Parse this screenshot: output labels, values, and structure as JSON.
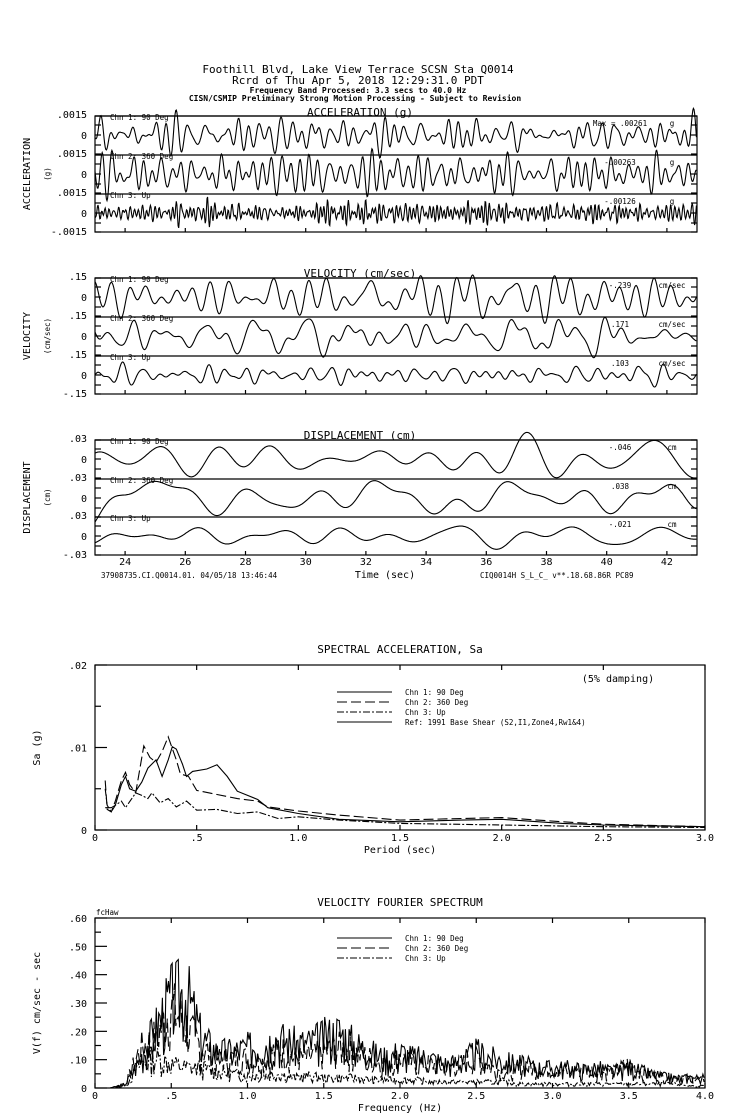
{
  "header": {
    "line1": "Foothill Blvd, Lake View Terrace    SCSN Sta Q0014",
    "line2": "Rcrd of Thu Apr  5, 2018 12:29:31.0 PDT",
    "line3": "Frequency Band Processed: 3.3 secs to 40.0 Hz",
    "line4": "CISN/CSMIP Preliminary Strong Motion Processing - Subject to Revision"
  },
  "footer": {
    "left": "37908735.CI.Q0014.01. 04/05/18 13:46:44",
    "right": "CIQ0014H  S_L_C_  v**.18.68.86R PC89"
  },
  "chart_data": [
    {
      "type": "line",
      "title": "ACCELERATION (g)",
      "ylabel": "ACCELERATION",
      "yunit": "(g)",
      "xlabel": "Time (sec)",
      "xlim": [
        23,
        43
      ],
      "xticks": [
        "24",
        "26",
        "28",
        "30",
        "32",
        "34",
        "36",
        "38",
        "40",
        "42"
      ],
      "ylim": [
        -0.0015,
        0.0015
      ],
      "yticks": [
        ".0015",
        "0",
        "-.0015"
      ],
      "series": [
        {
          "name": "Chn 1: 90 Deg",
          "peak_label": "Max = .00261",
          "unit": "g",
          "peak": 0.00261,
          "band": [
            1.0,
            4.0
          ],
          "seed": 11
        },
        {
          "name": "Chn 2: 360 Deg",
          "peak_label": "-.00263",
          "unit": "g",
          "peak": 0.00263,
          "band": [
            1.0,
            4.0
          ],
          "seed": 23
        },
        {
          "name": "Chn 3: Up",
          "peak_label": "-.00126",
          "unit": "g",
          "peak": 0.00126,
          "band": [
            3.0,
            9.0
          ],
          "seed": 37
        }
      ]
    },
    {
      "type": "line",
      "title": "VELOCITY (cm/sec)",
      "ylabel": "VELOCITY",
      "yunit": "(cm/sec)",
      "xlim": [
        23,
        43
      ],
      "ylim": [
        -0.15,
        0.15
      ],
      "yticks": [
        ".15",
        "0",
        "-.15"
      ],
      "series": [
        {
          "name": "Chn 1: 90 Deg",
          "peak_label": "-.239",
          "unit": "cm/sec",
          "peak": 0.239,
          "band": [
            0.4,
            2.0
          ],
          "seed": 5
        },
        {
          "name": "Chn 2: 360 Deg",
          "peak_label": ".171",
          "unit": "cm/sec",
          "peak": 0.171,
          "band": [
            0.4,
            2.0
          ],
          "seed": 17
        },
        {
          "name": "Chn 3: Up",
          "peak_label": ".103",
          "unit": "cm/sec",
          "peak": 0.103,
          "band": [
            0.4,
            2.5
          ],
          "seed": 29
        }
      ]
    },
    {
      "type": "line",
      "title": "DISPLACEMENT (cm)",
      "ylabel": "DISPLACEMENT",
      "yunit": "(cm)",
      "xlim": [
        23,
        43
      ],
      "ylim": [
        -0.03,
        0.03
      ],
      "yticks": [
        ".03",
        "0",
        "-.03"
      ],
      "series": [
        {
          "name": "Chn 1: 90 Deg",
          "peak_label": "-.046",
          "unit": "cm",
          "peak": 0.046,
          "band": [
            0.15,
            0.7
          ],
          "seed": 41
        },
        {
          "name": "Chn 2: 360 Deg",
          "peak_label": ".038",
          "unit": "cm",
          "peak": 0.038,
          "band": [
            0.15,
            0.7
          ],
          "seed": 53
        },
        {
          "name": "Chn 3: Up",
          "peak_label": "-.021",
          "unit": "cm",
          "peak": 0.021,
          "band": [
            0.15,
            0.7
          ],
          "seed": 67
        }
      ]
    },
    {
      "type": "line",
      "title": "SPECTRAL ACCELERATION, Sa",
      "note": "(5% damping)",
      "xlabel": "Period (sec)",
      "ylabel": "Sa (g)",
      "xlim": [
        0,
        3.0
      ],
      "ylim": [
        0,
        0.02
      ],
      "xticks": [
        "0",
        ".5",
        "1.0",
        "1.5",
        "2.0",
        "2.5",
        "3.0"
      ],
      "yticks": [
        ".02",
        ".01",
        "0"
      ],
      "series": [
        {
          "name": "Chn 1: 90 Deg",
          "dash": "solid",
          "x": [
            0.05,
            0.08,
            0.1,
            0.13,
            0.15,
            0.17,
            0.2,
            0.23,
            0.26,
            0.3,
            0.33,
            0.36,
            0.38,
            0.4,
            0.43,
            0.45,
            0.48,
            0.55,
            0.6,
            0.65,
            0.7,
            0.8,
            0.85,
            1.0,
            1.2,
            1.5,
            1.8,
            2.0,
            2.3,
            2.5,
            3.0
          ],
          "y": [
            0.0027,
            0.0027,
            0.003,
            0.0055,
            0.0065,
            0.005,
            0.0047,
            0.0058,
            0.0075,
            0.0085,
            0.0065,
            0.0085,
            0.0101,
            0.0098,
            0.008,
            0.0065,
            0.0071,
            0.0074,
            0.0079,
            0.0065,
            0.0047,
            0.0037,
            0.0027,
            0.002,
            0.0013,
            0.001,
            0.0012,
            0.0013,
            0.0008,
            0.0006,
            0.0004
          ]
        },
        {
          "name": "Chn 2: 360 Deg",
          "dash": "dashed",
          "x": [
            0.05,
            0.06,
            0.08,
            0.1,
            0.13,
            0.15,
            0.17,
            0.2,
            0.24,
            0.27,
            0.3,
            0.33,
            0.36,
            0.4,
            0.42,
            0.46,
            0.5,
            0.6,
            0.7,
            0.8,
            0.85,
            1.0,
            1.2,
            1.5,
            1.8,
            2.0,
            2.3,
            2.5,
            3.0
          ],
          "y": [
            0.006,
            0.0025,
            0.0022,
            0.0035,
            0.006,
            0.007,
            0.0055,
            0.0045,
            0.0102,
            0.0088,
            0.0082,
            0.0095,
            0.0113,
            0.0085,
            0.0068,
            0.0065,
            0.0048,
            0.0043,
            0.0038,
            0.0035,
            0.0028,
            0.0023,
            0.0018,
            0.0012,
            0.0014,
            0.0015,
            0.001,
            0.0007,
            0.0004
          ]
        },
        {
          "name": "Chn 3: Up",
          "dash": "dashdot",
          "x": [
            0.05,
            0.06,
            0.08,
            0.1,
            0.13,
            0.15,
            0.2,
            0.23,
            0.26,
            0.28,
            0.32,
            0.36,
            0.4,
            0.45,
            0.5,
            0.6,
            0.7,
            0.8,
            0.9,
            1.0,
            1.2,
            1.5,
            2.0,
            2.5,
            3.0
          ],
          "y": [
            0.005,
            0.003,
            0.0022,
            0.003,
            0.0035,
            0.0027,
            0.0045,
            0.0042,
            0.0038,
            0.0045,
            0.0033,
            0.0038,
            0.0028,
            0.0035,
            0.0024,
            0.0025,
            0.002,
            0.0022,
            0.0014,
            0.0016,
            0.0012,
            0.0008,
            0.0006,
            0.0004,
            0.0003
          ]
        },
        {
          "name": "Ref: 1991 Base Shear (S2,I1,Zone4,Rw1&4)",
          "dash": "solid",
          "x": [],
          "y": []
        }
      ]
    },
    {
      "type": "line",
      "title": "VELOCITY FOURIER SPECTRUM",
      "corner_label": "fcHaw",
      "xlabel": "Frequency (Hz)",
      "ylabel": "V(f)   cm/sec - sec",
      "xlim": [
        0,
        4.0
      ],
      "ylim": [
        0,
        0.6
      ],
      "xticks": [
        "0",
        ".5",
        "1.0",
        "1.5",
        "2.0",
        "2.5",
        "3.0",
        "3.5",
        "4.0"
      ],
      "yticks": [
        ".60",
        ".50",
        ".40",
        ".30",
        ".20",
        ".10",
        "0"
      ],
      "x_step": 0.1,
      "series": [
        {
          "name": "Chn 1: 90 Deg",
          "dash": "solid",
          "seed": 3,
          "envelope": [
            0,
            0,
            0.02,
            0.15,
            0.3,
            0.45,
            0.48,
            0.25,
            0.18,
            0.18,
            0.2,
            0.22,
            0.25,
            0.22,
            0.22,
            0.25,
            0.28,
            0.22,
            0.18,
            0.15,
            0.18,
            0.15,
            0.15,
            0.12,
            0.13,
            0.18,
            0.15,
            0.13,
            0.12,
            0.1,
            0.1,
            0.1,
            0.09,
            0.1,
            0.08,
            0.1,
            0.08,
            0.06,
            0.05,
            0.05,
            0.05
          ]
        },
        {
          "name": "Chn 2: 360 Deg",
          "dash": "dashed",
          "seed": 7,
          "envelope": [
            0,
            0,
            0.02,
            0.2,
            0.25,
            0.4,
            0.3,
            0.2,
            0.15,
            0.15,
            0.15,
            0.13,
            0.2,
            0.15,
            0.15,
            0.18,
            0.2,
            0.18,
            0.15,
            0.12,
            0.15,
            0.12,
            0.12,
            0.1,
            0.12,
            0.15,
            0.1,
            0.08,
            0.1,
            0.1,
            0.1,
            0.08,
            0.1,
            0.08,
            0.08,
            0.12,
            0.07,
            0.06,
            0.05,
            0.05,
            0.04
          ]
        },
        {
          "name": "Chn 3: Up",
          "dash": "dashdot",
          "seed": 13,
          "envelope": [
            0,
            0,
            0.01,
            0.12,
            0.15,
            0.12,
            0.1,
            0.1,
            0.08,
            0.07,
            0.06,
            0.06,
            0.07,
            0.05,
            0.06,
            0.05,
            0.05,
            0.05,
            0.04,
            0.04,
            0.04,
            0.04,
            0.03,
            0.03,
            0.03,
            0.03,
            0.03,
            0.03,
            0.02,
            0.02,
            0.02,
            0.02,
            0.02,
            0.02,
            0.02,
            0.02,
            0.02,
            0.02,
            0.02,
            0.01,
            0.01
          ]
        }
      ]
    }
  ]
}
